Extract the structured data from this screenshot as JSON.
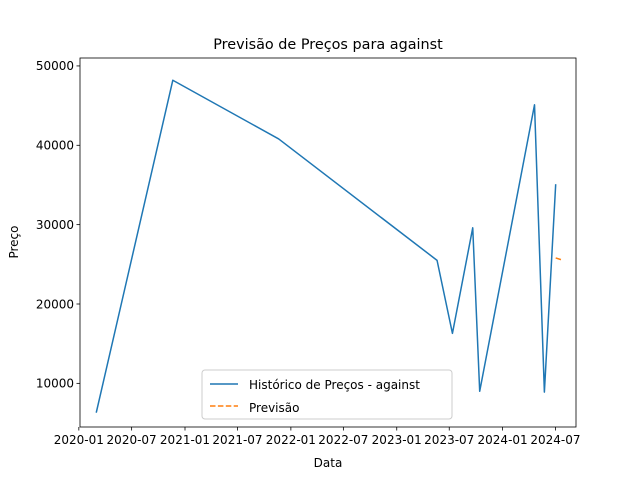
{
  "chart_data": {
    "type": "line",
    "title": "Previsão de Preços para against",
    "xlabel": "Data",
    "ylabel": "Preço",
    "ylim": [
      4500,
      51000
    ],
    "xlim": [
      "2020-01-05",
      "2024-09-10"
    ],
    "x_ticks": [
      "2020-01",
      "2020-07",
      "2021-01",
      "2021-07",
      "2022-01",
      "2022-07",
      "2023-01",
      "2023-07",
      "2024-01",
      "2024-07"
    ],
    "y_ticks": [
      10000,
      20000,
      30000,
      40000,
      50000
    ],
    "legend_position": "lower center",
    "grid": false,
    "series": [
      {
        "name": "Histórico de Preços - against",
        "color": "#1f77b4",
        "style": "solid",
        "points": [
          {
            "x": "2020-03-01",
            "y": 6300
          },
          {
            "x": "2020-11-20",
            "y": 48200
          },
          {
            "x": "2021-11-20",
            "y": 40800
          },
          {
            "x": "2023-05-20",
            "y": 25500
          },
          {
            "x": "2023-07-12",
            "y": 16300
          },
          {
            "x": "2023-09-20",
            "y": 29600
          },
          {
            "x": "2023-10-14",
            "y": 9000
          },
          {
            "x": "2024-04-20",
            "y": 45100
          },
          {
            "x": "2024-05-24",
            "y": 8900
          },
          {
            "x": "2024-07-02",
            "y": 35100
          }
        ]
      },
      {
        "name": "Previsão",
        "color": "#ff7f0e",
        "style": "dashed",
        "points": [
          {
            "x": "2024-07-02",
            "y": 25800
          },
          {
            "x": "2024-07-28",
            "y": 25500
          }
        ]
      }
    ]
  }
}
